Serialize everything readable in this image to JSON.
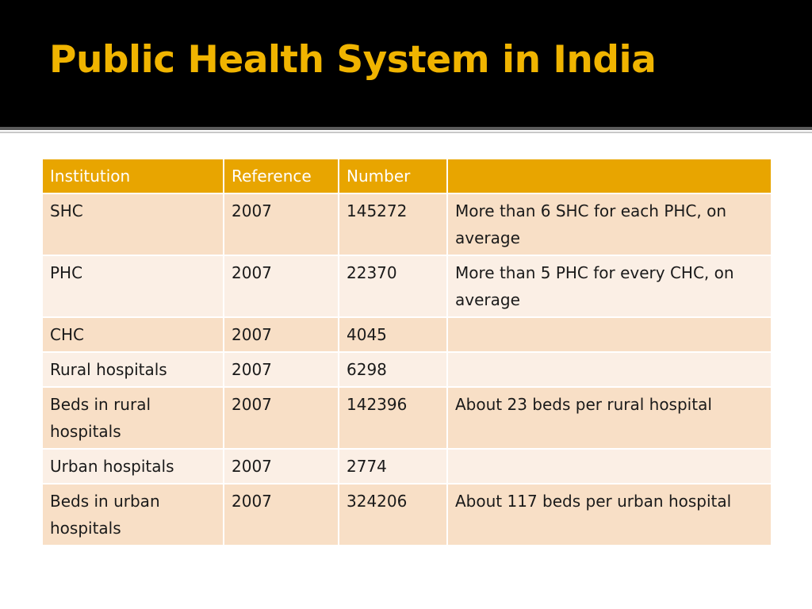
{
  "slide": {
    "title": "Public Health System in India"
  },
  "table": {
    "headers": [
      "Institution",
      "Reference",
      "Number",
      ""
    ],
    "rows": [
      [
        "SHC",
        "2007",
        "145272",
        "More than 6 SHC for each PHC, on average"
      ],
      [
        "PHC",
        "2007",
        "22370",
        "More than 5 PHC for every CHC, on average"
      ],
      [
        "CHC",
        "2007",
        "4045",
        ""
      ],
      [
        "Rural hospitals",
        "2007",
        "6298",
        ""
      ],
      [
        "Beds in rural hospitals",
        "2007",
        "142396",
        "About 23 beds per rural hospital"
      ],
      [
        "Urban hospitals",
        "2007",
        "2774",
        ""
      ],
      [
        "Beds in urban hospitals",
        "2007",
        "324206",
        "About  117 beds per urban hospital"
      ]
    ]
  },
  "colors": {
    "title_text": "#f0b400",
    "title_band": "#000000",
    "header_fill": "#e8a500",
    "row_odd": "#f8dfc6",
    "row_even": "#fbefe5"
  }
}
